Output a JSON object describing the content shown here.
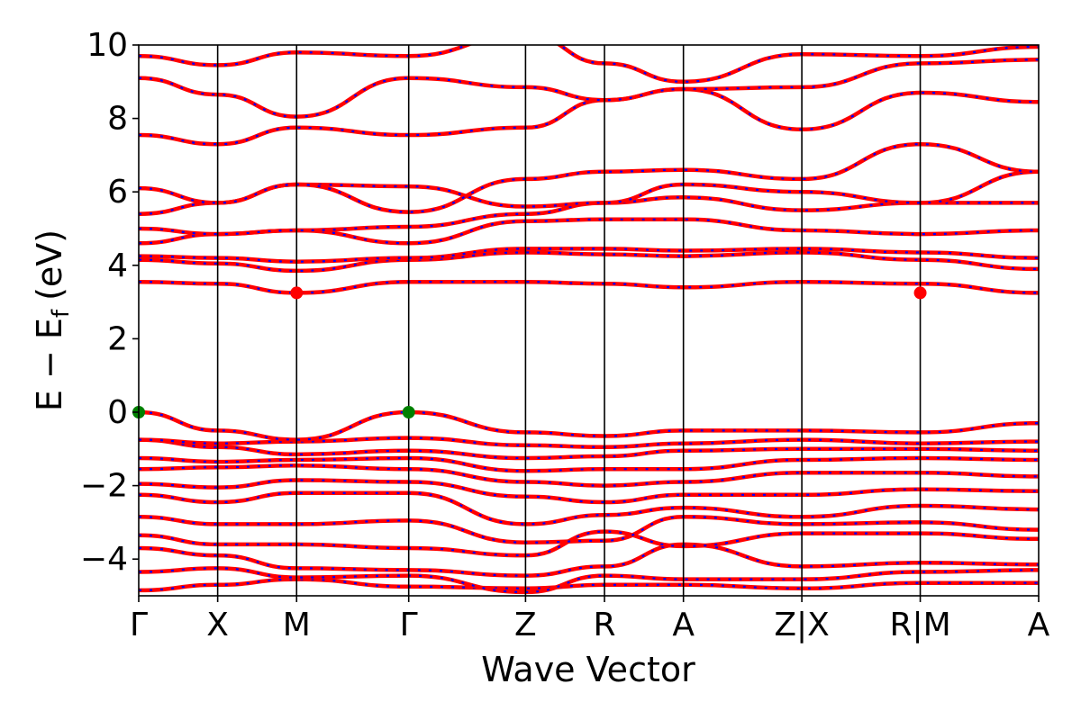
{
  "chart_data": {
    "type": "line",
    "title": "",
    "xlabel": "Wave Vector",
    "ylabel": "E − E",
    "ylabel_subscript": "f",
    "ylabel_unit": "(eV)",
    "ylim": [
      -5,
      10
    ],
    "y_ticks": [
      -4,
      -2,
      0,
      2,
      4,
      6,
      8,
      10
    ],
    "y_tick_labels": [
      "−4",
      "−2",
      "0",
      "2",
      "4",
      "6",
      "8",
      "10"
    ],
    "kpoints": [
      {
        "label": "Γ",
        "x": 0.0,
        "divider": false
      },
      {
        "label": "X",
        "x": 0.5,
        "divider": false
      },
      {
        "label": "M",
        "x": 1.0,
        "divider": false
      },
      {
        "label": "Γ",
        "x": 1.71,
        "divider": false
      },
      {
        "label": "Z",
        "x": 2.45,
        "divider": false
      },
      {
        "label": "R",
        "x": 2.95,
        "divider": false
      },
      {
        "label": "A",
        "x": 3.45,
        "divider": false
      },
      {
        "label": "Z|X",
        "x": 4.2,
        "divider": true
      },
      {
        "label": "R|M",
        "x": 4.95,
        "divider": true
      },
      {
        "label": "A",
        "x": 5.7,
        "divider": false
      }
    ],
    "series_styles": [
      {
        "name": "",
        "color": "#ff0000",
        "linestyle": "solid"
      },
      {
        "name": "",
        "color": "#0000ff",
        "linestyle": "dotted"
      }
    ],
    "bands": [
      [
        -4.85,
        -4.7,
        -4.55,
        -4.75,
        -4.8,
        -4.7,
        -4.7,
        -4.8,
        -4.65,
        -4.65,
        -4.65
      ],
      [
        -4.35,
        -4.25,
        -4.5,
        -4.45,
        -4.9,
        -4.45,
        -4.55,
        -4.55,
        -4.35,
        -4.3,
        -4.35
      ],
      [
        -3.7,
        -3.9,
        -4.25,
        -4.3,
        -4.45,
        -4.2,
        -3.6,
        -4.2,
        -4.1,
        -4.15,
        -4.15
      ],
      [
        -3.35,
        -3.6,
        -3.6,
        -3.7,
        -3.9,
        -3.25,
        -3.65,
        -3.3,
        -3.3,
        -3.45,
        -3.6
      ],
      [
        -2.85,
        -3.05,
        -3.05,
        -2.95,
        -3.55,
        -3.5,
        -2.85,
        -3.05,
        -3.0,
        -3.2,
        -3.3
      ],
      [
        -2.25,
        -2.45,
        -2.2,
        -2.2,
        -3.05,
        -2.8,
        -2.6,
        -2.85,
        -2.55,
        -2.65,
        -2.7
      ],
      [
        -1.95,
        -2.05,
        -1.85,
        -1.9,
        -2.3,
        -2.45,
        -2.25,
        -2.25,
        -2.1,
        -2.15,
        -2.35
      ],
      [
        -1.55,
        -1.5,
        -1.45,
        -1.55,
        -1.9,
        -2.0,
        -1.9,
        -1.65,
        -1.65,
        -1.75,
        -1.65
      ],
      [
        -1.25,
        -1.35,
        -1.3,
        -1.25,
        -1.6,
        -1.55,
        -1.55,
        -1.3,
        -1.25,
        -1.3,
        -1.2
      ],
      [
        -0.75,
        -0.95,
        -1.15,
        -1.05,
        -1.25,
        -1.2,
        -1.05,
        -1.0,
        -1.0,
        -1.05,
        -1.05
      ],
      [
        -0.75,
        -0.85,
        -0.8,
        -0.7,
        -0.9,
        -0.95,
        -0.85,
        -0.75,
        -0.85,
        -0.8,
        -0.7
      ],
      [
        0.0,
        -0.5,
        -0.75,
        0.0,
        -0.55,
        -0.65,
        -0.5,
        -0.5,
        -0.55,
        -0.3,
        -0.45
      ],
      [
        3.55,
        3.5,
        3.25,
        3.55,
        3.55,
        3.5,
        3.4,
        3.55,
        3.5,
        3.25,
        3.4
      ],
      [
        4.15,
        4.05,
        3.85,
        4.15,
        4.35,
        4.3,
        4.25,
        4.35,
        4.15,
        3.9,
        4.25
      ],
      [
        4.25,
        4.2,
        4.1,
        4.2,
        4.45,
        4.45,
        4.4,
        4.45,
        4.35,
        4.2,
        4.3
      ],
      [
        4.6,
        4.85,
        4.95,
        4.6,
        5.2,
        5.25,
        5.25,
        4.95,
        4.85,
        4.95,
        6.2
      ],
      [
        5.0,
        4.85,
        4.95,
        5.05,
        5.4,
        5.7,
        5.85,
        5.5,
        5.7,
        5.7,
        6.6
      ],
      [
        5.4,
        5.7,
        6.2,
        6.15,
        5.6,
        5.7,
        6.2,
        6.0,
        5.7,
        6.55,
        6.6
      ],
      [
        6.1,
        5.7,
        6.2,
        5.45,
        6.35,
        6.55,
        6.6,
        6.35,
        7.3,
        6.55,
        7.75
      ],
      [
        7.55,
        7.3,
        7.75,
        7.55,
        7.75,
        8.5,
        8.8,
        7.7,
        8.7,
        8.45,
        8.1
      ],
      [
        9.1,
        8.65,
        8.05,
        9.1,
        8.85,
        8.5,
        8.8,
        8.85,
        9.5,
        9.6,
        8.9
      ],
      [
        9.7,
        9.45,
        9.8,
        9.7,
        10.3,
        9.5,
        9.0,
        9.75,
        9.7,
        9.95,
        9.05
      ]
    ],
    "markers": [
      {
        "x": 0.0,
        "y": 0.0,
        "color": "#008000",
        "label": "VBM"
      },
      {
        "x": 1.71,
        "y": 0.0,
        "color": "#008000",
        "label": "VBM"
      },
      {
        "x": 1.0,
        "y": 3.25,
        "color": "#ff0000",
        "label": "CBM"
      },
      {
        "x": 4.95,
        "y": 3.25,
        "color": "#ff0000",
        "label": "CBM"
      }
    ]
  }
}
